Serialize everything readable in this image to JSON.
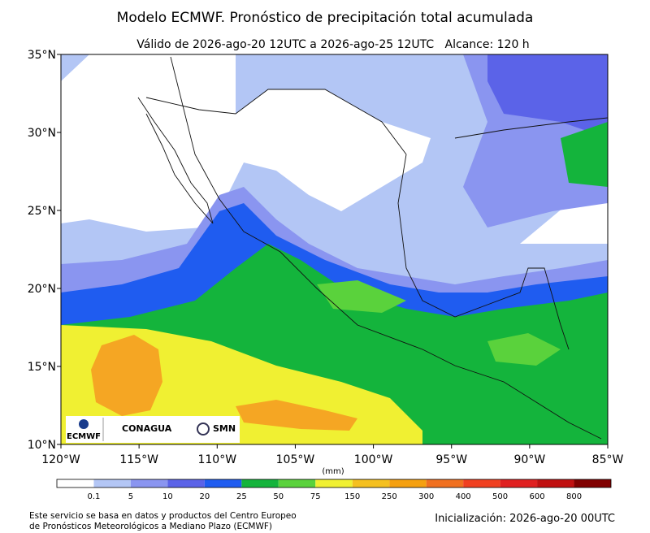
{
  "header": {
    "title": "Modelo ECMWF. Pronóstico de precipitación total acumulada",
    "subtitle": "Válido de 2026-ago-20 12UTC a 2026-ago-25 12UTC   Alcance: 120 h"
  },
  "map": {
    "lat_labels": [
      "35°N",
      "30°N",
      "25°N",
      "20°N",
      "15°N",
      "10°N"
    ],
    "lon_labels": [
      "120°W",
      "115°W",
      "110°W",
      "105°W",
      "100°W",
      "95°W",
      "90°W",
      "85°W"
    ]
  },
  "logos": {
    "ecmwf": "ECMWF",
    "conagua": "CONAGUA",
    "smn": "SMN"
  },
  "colorbar": {
    "unit": "(mm)",
    "labels": [
      "0.1",
      "5",
      "10",
      "20",
      "25",
      "50",
      "75",
      "150",
      "250",
      "300",
      "400",
      "500",
      "600",
      "800"
    ],
    "colors": [
      "#ffffff",
      "#b3c6f5",
      "#8a95f0",
      "#5b63e8",
      "#1f5cf0",
      "#14b43c",
      "#5ad23c",
      "#f0f032",
      "#f5c020",
      "#f5a010",
      "#f07020",
      "#f04020",
      "#e02020",
      "#c01010",
      "#800000"
    ]
  },
  "footer": {
    "source": [
      "Este servicio se basa en datos y productos del Centro Europeo",
      "de Pronósticos Meteorológicos a Mediano Plazo (ECMWF)"
    ],
    "init": "Inicialización: 2026-ago-20 00UTC"
  }
}
